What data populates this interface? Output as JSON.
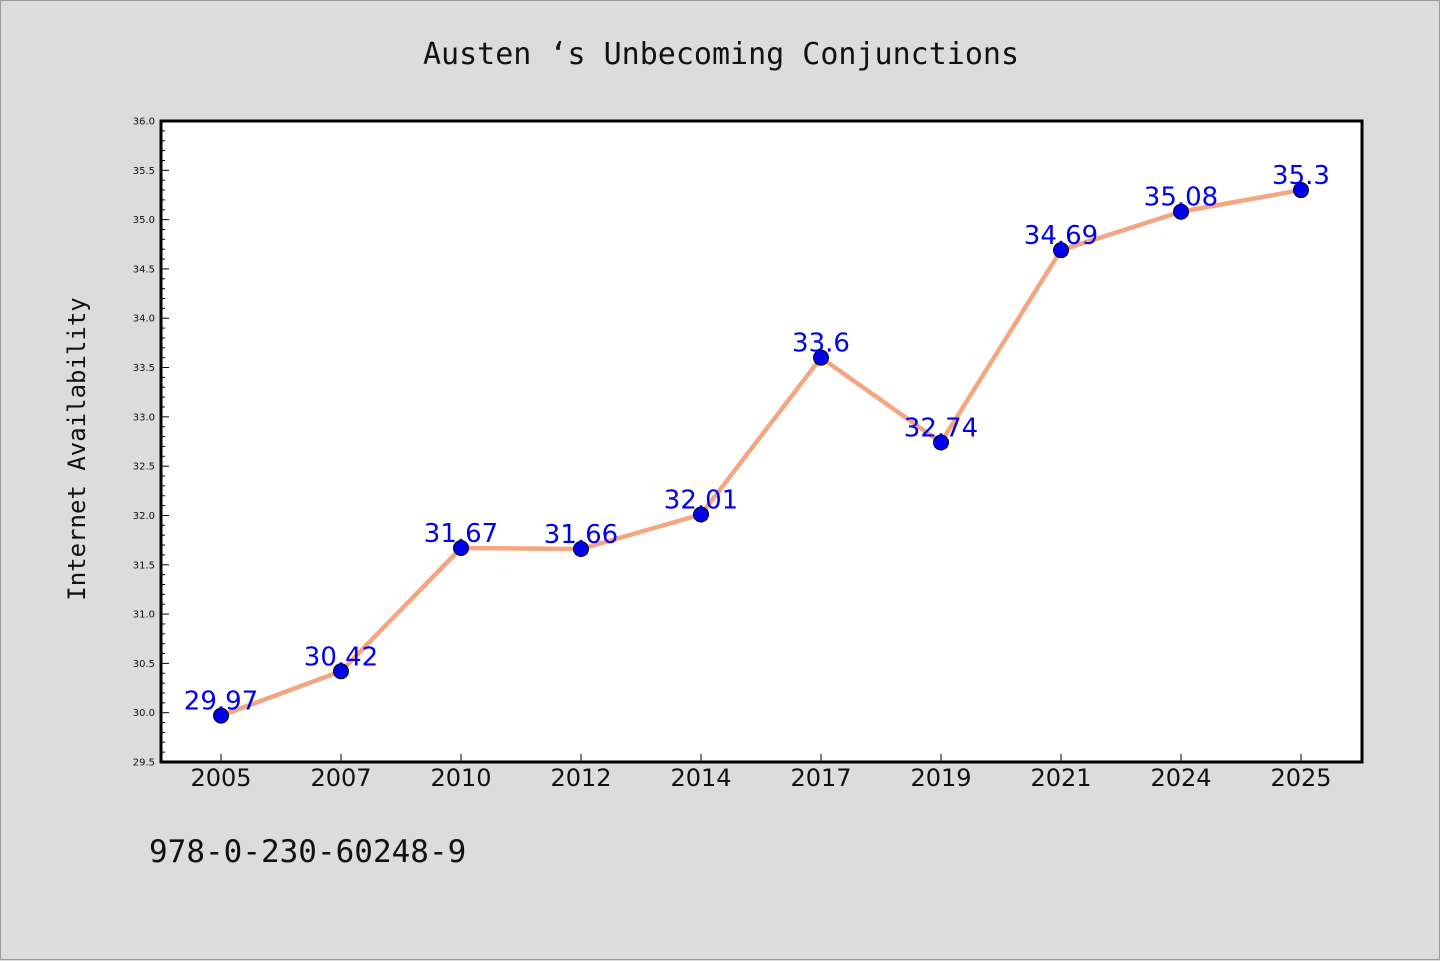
{
  "colors": {
    "line": "#f4a582",
    "marker": "#0000ee",
    "label": "#0000ee",
    "background": "#dcdcdc",
    "plot_background": "#ffffff"
  },
  "footnote": "978-0-230-60248-9",
  "chart_data": {
    "type": "line",
    "title": "Austen ‘s Unbecoming Conjunctions",
    "xlabel": "",
    "ylabel": "Internet Availability",
    "categories": [
      "2005",
      "2007",
      "2010",
      "2012",
      "2014",
      "2017",
      "2019",
      "2021",
      "2024",
      "2025"
    ],
    "series": [
      {
        "values": [
          29.97,
          30.42,
          31.67,
          31.66,
          32.01,
          33.6,
          32.74,
          34.69,
          35.08,
          35.3
        ],
        "labels": [
          "29.97",
          "30.42",
          "31.67",
          "31.66",
          "32.01",
          "33.6",
          "32.74",
          "34.69",
          "35.08",
          "35.3"
        ]
      }
    ],
    "ylim": [
      29.5,
      36.0
    ],
    "yticks": [
      "29.5",
      "30.0",
      "30.5",
      "31.0",
      "31.5",
      "32.0",
      "32.5",
      "33.0",
      "33.5",
      "34.0",
      "34.5",
      "35.0",
      "35.5",
      "36.0"
    ],
    "grid": false,
    "legend": "none"
  }
}
